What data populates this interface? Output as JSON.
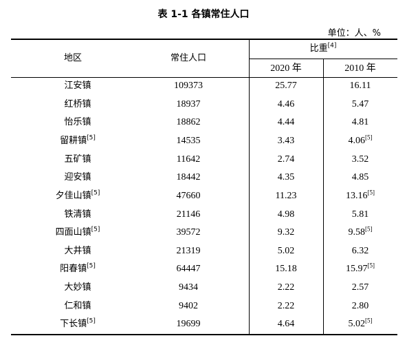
{
  "title": "表 1-1  各镇常住人口",
  "unit": "单位：人、%",
  "table": {
    "headers": {
      "region": "地区",
      "population": "常住人口",
      "share": "比重",
      "share_note": "[4]",
      "year2020": "2020 年",
      "year2010": "2010 年"
    },
    "rows": [
      {
        "region": "江安镇",
        "population": "109373",
        "share2020": "25.77",
        "share2010": "16.11"
      },
      {
        "region": "红桥镇",
        "population": "18937",
        "share2020": "4.46",
        "share2010": "5.47"
      },
      {
        "region": "怡乐镇",
        "population": "18862",
        "share2020": "4.44",
        "share2010": "4.81"
      },
      {
        "region": "留耕镇",
        "region_note": "[5]",
        "population": "14535",
        "share2020": "3.43",
        "share2010": "4.06",
        "share2010_note": "[5]"
      },
      {
        "region": "五矿镇",
        "population": "11642",
        "share2020": "2.74",
        "share2010": "3.52"
      },
      {
        "region": "迎安镇",
        "population": "18442",
        "share2020": "4.35",
        "share2010": "4.85"
      },
      {
        "region": "夕佳山镇",
        "region_note": "[5]",
        "population": "47660",
        "share2020": "11.23",
        "share2010": "13.16",
        "share2010_note": "[5]"
      },
      {
        "region": "铁清镇",
        "population": "21146",
        "share2020": "4.98",
        "share2010": "5.81"
      },
      {
        "region": "四面山镇",
        "region_note": "[5]",
        "population": "39572",
        "share2020": "9.32",
        "share2010": "9.58",
        "share2010_note": "[5]"
      },
      {
        "region": "大井镇",
        "population": "21319",
        "share2020": "5.02",
        "share2010": "6.32"
      },
      {
        "region": "阳春镇",
        "region_note": "[5]",
        "population": "64447",
        "share2020": "15.18",
        "share2010": "15.97",
        "share2010_note": "[5]"
      },
      {
        "region": "大妙镇",
        "population": "9434",
        "share2020": "2.22",
        "share2010": "2.57"
      },
      {
        "region": "仁和镇",
        "population": "9402",
        "share2020": "2.22",
        "share2010": "2.80"
      },
      {
        "region": "下长镇",
        "region_note": "[5]",
        "population": "19699",
        "share2020": "4.64",
        "share2010": "5.02",
        "share2010_note": "[5]"
      }
    ]
  }
}
